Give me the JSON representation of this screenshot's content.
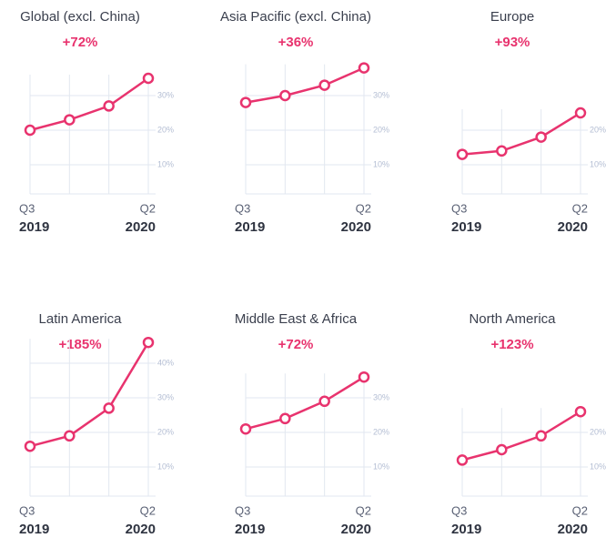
{
  "chart_data": [
    {
      "type": "line",
      "title": "Global (excl. China)",
      "annotation": "+72%",
      "categories": [
        "Q3",
        null,
        null,
        "Q2"
      ],
      "category_years": [
        "2019",
        null,
        null,
        "2020"
      ],
      "values": [
        20,
        23,
        27,
        35
      ],
      "color": "#e8336e",
      "ylim": [
        0,
        40
      ],
      "yticks": [
        {
          "value": 10,
          "label": "10%"
        },
        {
          "value": 20,
          "label": "20%"
        },
        {
          "value": 30,
          "label": "30%"
        }
      ],
      "grid": true
    },
    {
      "type": "line",
      "title": "Asia Pacific (excl. China)",
      "annotation": "+36%",
      "categories": [
        "Q3",
        null,
        null,
        "Q2"
      ],
      "category_years": [
        "2019",
        null,
        null,
        "2020"
      ],
      "values": [
        28,
        30,
        33,
        38
      ],
      "color": "#e8336e",
      "ylim": [
        0,
        40
      ],
      "yticks": [
        {
          "value": 10,
          "label": "10%"
        },
        {
          "value": 20,
          "label": "20%"
        },
        {
          "value": 30,
          "label": "30%"
        }
      ],
      "grid": true
    },
    {
      "type": "line",
      "title": "Europe",
      "annotation": "+93%",
      "categories": [
        "Q3",
        null,
        null,
        "Q2"
      ],
      "category_years": [
        "2019",
        null,
        null,
        "2020"
      ],
      "values": [
        13,
        14,
        18,
        25
      ],
      "color": "#e8336e",
      "ylim": [
        0,
        40
      ],
      "yticks": [
        {
          "value": 10,
          "label": "10%"
        },
        {
          "value": 20,
          "label": "20%"
        }
      ],
      "grid": true
    },
    {
      "type": "line",
      "title": "Latin America",
      "annotation": "+185%",
      "categories": [
        "Q3",
        null,
        null,
        "Q2"
      ],
      "category_years": [
        "2019",
        null,
        null,
        "2020"
      ],
      "values": [
        16,
        19,
        27,
        46
      ],
      "color": "#e8336e",
      "ylim": [
        0,
        40
      ],
      "yticks": [
        {
          "value": 10,
          "label": "10%"
        },
        {
          "value": 20,
          "label": "20%"
        },
        {
          "value": 30,
          "label": "30%"
        },
        {
          "value": 40,
          "label": "40%"
        }
      ],
      "grid": true
    },
    {
      "type": "line",
      "title": "Middle East & Africa",
      "annotation": "+72%",
      "categories": [
        "Q3",
        null,
        null,
        "Q2"
      ],
      "category_years": [
        "2019",
        null,
        null,
        "2020"
      ],
      "values": [
        21,
        24,
        29,
        36
      ],
      "color": "#e8336e",
      "ylim": [
        0,
        40
      ],
      "yticks": [
        {
          "value": 10,
          "label": "10%"
        },
        {
          "value": 20,
          "label": "20%"
        },
        {
          "value": 30,
          "label": "30%"
        }
      ],
      "grid": true
    },
    {
      "type": "line",
      "title": "North America",
      "annotation": "+123%",
      "categories": [
        "Q3",
        null,
        null,
        "Q2"
      ],
      "category_years": [
        "2019",
        null,
        null,
        "2020"
      ],
      "values": [
        12,
        15,
        19,
        26
      ],
      "color": "#e8336e",
      "ylim": [
        0,
        40
      ],
      "yticks": [
        {
          "value": 10,
          "label": "10%"
        },
        {
          "value": 20,
          "label": "20%"
        }
      ],
      "grid": true
    }
  ]
}
